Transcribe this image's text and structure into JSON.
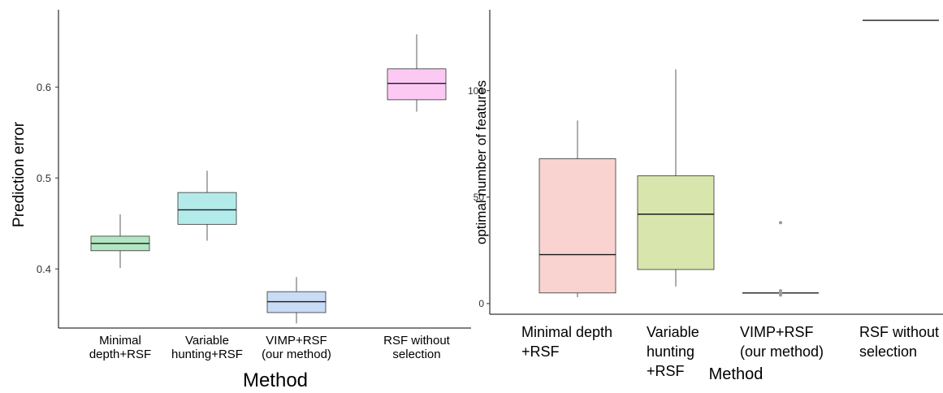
{
  "chart_data": [
    {
      "type": "box",
      "xlabel": "Method",
      "ylabel": "Prediction error",
      "ylim": [
        0.335,
        0.685
      ],
      "yticks": [
        "0.4",
        "0.5",
        "0.6"
      ],
      "ytick_values": [
        0.4,
        0.5,
        0.6
      ],
      "grid": false,
      "categories": [
        [
          "Minimal",
          "depth+RSF"
        ],
        [
          "Variable",
          "hunting+RSF"
        ],
        [
          "VIMP+RSF",
          "(our method)"
        ],
        [
          "RSF without",
          "selection"
        ]
      ],
      "boxes": [
        {
          "min": 0.401,
          "q1": 0.42,
          "median": 0.428,
          "q3": 0.436,
          "max": 0.46,
          "outliers": [],
          "color": "#b3e6c2"
        },
        {
          "min": 0.431,
          "q1": 0.449,
          "median": 0.465,
          "q3": 0.484,
          "max": 0.508,
          "outliers": [],
          "color": "#b2ebea"
        },
        {
          "min": 0.34,
          "q1": 0.352,
          "median": 0.364,
          "q3": 0.375,
          "max": 0.391,
          "outliers": [],
          "color": "#c9dcf5"
        },
        {
          "min": 0.573,
          "q1": 0.586,
          "median": 0.604,
          "q3": 0.62,
          "max": 0.658,
          "outliers": [],
          "color": "#fbc9f4"
        }
      ]
    },
    {
      "type": "box",
      "xlabel": "Method",
      "ylabel": "optimal number of features",
      "ylim": [
        -5,
        138
      ],
      "yticks": [
        "0",
        "50",
        "100"
      ],
      "ytick_values": [
        0,
        50,
        100
      ],
      "grid": false,
      "categories": [
        [
          "Minimal depth",
          "+RSF"
        ],
        [
          "Variable",
          "hunting",
          "+RSF"
        ],
        [
          "VIMP+RSF",
          "(our method)"
        ],
        [
          "RSF without",
          "selection"
        ]
      ],
      "boxes": [
        {
          "min": 3,
          "q1": 5,
          "median": 23,
          "q3": 68,
          "max": 86,
          "outliers": [],
          "color": "#f9d3cf"
        },
        {
          "min": 8,
          "q1": 16,
          "median": 42,
          "q3": 60,
          "max": 110,
          "outliers": [],
          "color": "#d8e6ad"
        },
        {
          "min": 5,
          "q1": 5,
          "median": 5,
          "q3": 5,
          "max": 5,
          "outliers": [
            38,
            6,
            5,
            4
          ],
          "color": "#c9dcf5"
        },
        {
          "min": 133,
          "q1": 133,
          "median": 133,
          "q3": 133,
          "max": 133,
          "outliers": [],
          "color": "#f2d6f0"
        }
      ]
    }
  ]
}
